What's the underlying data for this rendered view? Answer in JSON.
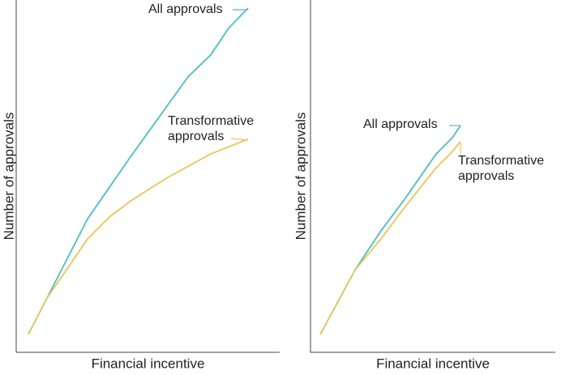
{
  "chart_data": [
    {
      "type": "line",
      "xlabel": "Financial incentive",
      "ylabel": "Number of approvals",
      "xlim": [
        0,
        100
      ],
      "ylim": [
        0,
        100
      ],
      "series": [
        {
          "name": "All approvals",
          "color": "#4dbdc0",
          "x": [
            4.6,
            11.7,
            27.1,
            43.1,
            65.2,
            73.8,
            80.6,
            88
          ],
          "values": [
            5.1,
            15.4,
            37.9,
            55.2,
            78.2,
            84.4,
            92,
            97.7
          ]
        },
        {
          "name": "Transformative approvals",
          "color": "#e6c65c",
          "x": [
            4.6,
            11.7,
            27.1,
            35.4,
            43.1,
            56.9,
            73.8,
            88
          ],
          "values": [
            5.1,
            15.4,
            32.2,
            38.4,
            42.8,
            49.4,
            56.3,
            60.5
          ]
        }
      ]
    },
    {
      "type": "line",
      "xlabel": "Financial incentive",
      "ylabel": "Number of approvals",
      "xlim": [
        0,
        100
      ],
      "ylim": [
        0,
        100
      ],
      "series": [
        {
          "name": "All approvals",
          "color": "#4dbdc0",
          "x": [
            4,
            18.2,
            28.8,
            38.7,
            51.3,
            57.9,
            61.3
          ],
          "values": [
            5.1,
            23.4,
            34.5,
            43.7,
            56.3,
            60.9,
            64.4
          ]
        },
        {
          "name": "Transformative approvals",
          "color": "#e6c65c",
          "x": [
            4,
            18.2,
            28.8,
            38.7,
            51.3,
            57,
            61.3
          ],
          "values": [
            5.1,
            23.4,
            32.2,
            41.4,
            52.4,
            56.3,
            59.8
          ]
        }
      ]
    }
  ]
}
